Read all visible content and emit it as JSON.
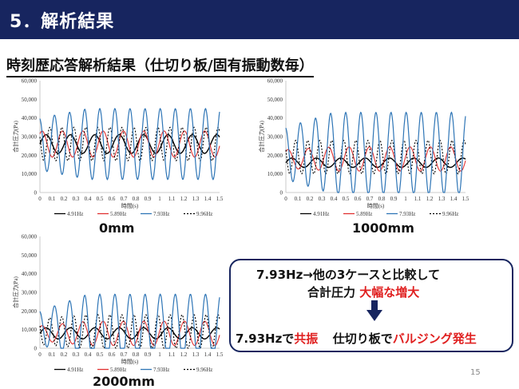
{
  "header": {
    "title": "5．解析結果"
  },
  "subtitle": "時刻歴応答解析結果（仕切り板/固有振動数毎）",
  "page_number": "15",
  "callout": {
    "line1": "7.93Hz→他の3ケースと比較して",
    "line2_a": "合計圧力",
    "line2_b": "大幅な増大",
    "line3_a": "7.93Hzで",
    "line3_b": "共振",
    "line3_c": "仕切り板で",
    "line3_d": "バルジング発生",
    "arrow_icon": "arrow-down-icon"
  },
  "colors": {
    "header_bg": "#17255f",
    "s1": "#000000",
    "s2": "#e03030",
    "s3": "#2e75b6",
    "s4": "#000000",
    "emphasis": "#e02020"
  },
  "chart_data": [
    {
      "type": "line",
      "caption": "0mm",
      "xlabel": "時間(s)",
      "ylabel": "合計圧力(Pa)",
      "xlim": [
        0,
        1.5
      ],
      "ylim": [
        0,
        60000
      ],
      "xticks": [
        "0",
        "0.1",
        "0.2",
        "0.3",
        "0.4",
        "0.5",
        "0.6",
        "0.7",
        "0.8",
        "0.9",
        "1",
        "1.1",
        "1.2",
        "1.3",
        "1.4",
        "1.5"
      ],
      "yticks": [
        "0",
        "10,000",
        "20,000",
        "30,000",
        "40,000",
        "50,000",
        "60,000"
      ],
      "grid": false,
      "legend": "bottom",
      "series": [
        {
          "name": "4.91Hz",
          "freq": 4.91,
          "mean": 26000,
          "amp": 5000,
          "growth": 0.0,
          "dash": ""
        },
        {
          "name": "5.89Hz",
          "freq": 5.89,
          "mean": 26000,
          "amp": 7000,
          "growth": 0.0,
          "dash": ""
        },
        {
          "name": "7.93Hz",
          "freq": 7.93,
          "mean": 26000,
          "amp": 14000,
          "growth": 5000,
          "dash": ""
        },
        {
          "name": "9.96Hz",
          "freq": 9.96,
          "mean": 26000,
          "amp": 9000,
          "growth": 0.0,
          "dash": "2,2"
        }
      ]
    },
    {
      "type": "line",
      "caption": "1000mm",
      "xlabel": "時間(s)",
      "ylabel": "合計圧力(Pa)",
      "xlim": [
        0,
        1.5
      ],
      "ylim": [
        0,
        60000
      ],
      "xticks": [
        "0",
        "0.1",
        "0.2",
        "0.3",
        "0.4",
        "0.5",
        "0.6",
        "0.7",
        "0.8",
        "0.9",
        "1",
        "1.1",
        "1.2",
        "1.3",
        "1.4",
        "1.5"
      ],
      "yticks": [
        "0",
        "10,000",
        "20,000",
        "30,000",
        "40,000",
        "50,000",
        "60,000"
      ],
      "grid": false,
      "legend": "bottom",
      "series": [
        {
          "name": "4.91Hz",
          "freq": 4.91,
          "mean": 16000,
          "amp": 2500,
          "growth": 0.0,
          "dash": ""
        },
        {
          "name": "5.89Hz",
          "freq": 5.89,
          "mean": 18000,
          "amp": 5000,
          "growth": 1500,
          "dash": ""
        },
        {
          "name": "7.93Hz",
          "freq": 7.93,
          "mean": 21000,
          "amp": 14000,
          "growth": 8000,
          "dash": ""
        },
        {
          "name": "9.96Hz",
          "freq": 9.96,
          "mean": 19000,
          "amp": 9000,
          "growth": 0.0,
          "dash": "2,2"
        }
      ]
    },
    {
      "type": "line",
      "caption": "2000mm",
      "xlabel": "時間(s)",
      "ylabel": "合計圧力(Pa)",
      "xlim": [
        0,
        1.5
      ],
      "ylim": [
        0,
        60000
      ],
      "xticks": [
        "0",
        "0.1",
        "0.2",
        "0.3",
        "0.4",
        "0.5",
        "0.6",
        "0.7",
        "0.8",
        "0.9",
        "1",
        "1.1",
        "1.2",
        "1.3",
        "1.4",
        "1.5"
      ],
      "yticks": [
        "0",
        "10,000",
        "20,000",
        "30,000",
        "40,000",
        "50,000",
        "60,000"
      ],
      "grid": false,
      "legend": "bottom",
      "series": [
        {
          "name": "4.91Hz",
          "freq": 4.91,
          "mean": 8000,
          "amp": 3000,
          "growth": 0.0,
          "dash": ""
        },
        {
          "name": "5.89Hz",
          "freq": 5.89,
          "mean": 8000,
          "amp": 4000,
          "growth": 2500,
          "dash": ""
        },
        {
          "name": "7.93Hz",
          "freq": 7.93,
          "mean": 11000,
          "amp": 9000,
          "growth": 9000,
          "dash": ""
        },
        {
          "name": "9.96Hz",
          "freq": 9.96,
          "mean": 9000,
          "amp": 7000,
          "growth": 2000,
          "dash": "2,2"
        }
      ]
    }
  ]
}
